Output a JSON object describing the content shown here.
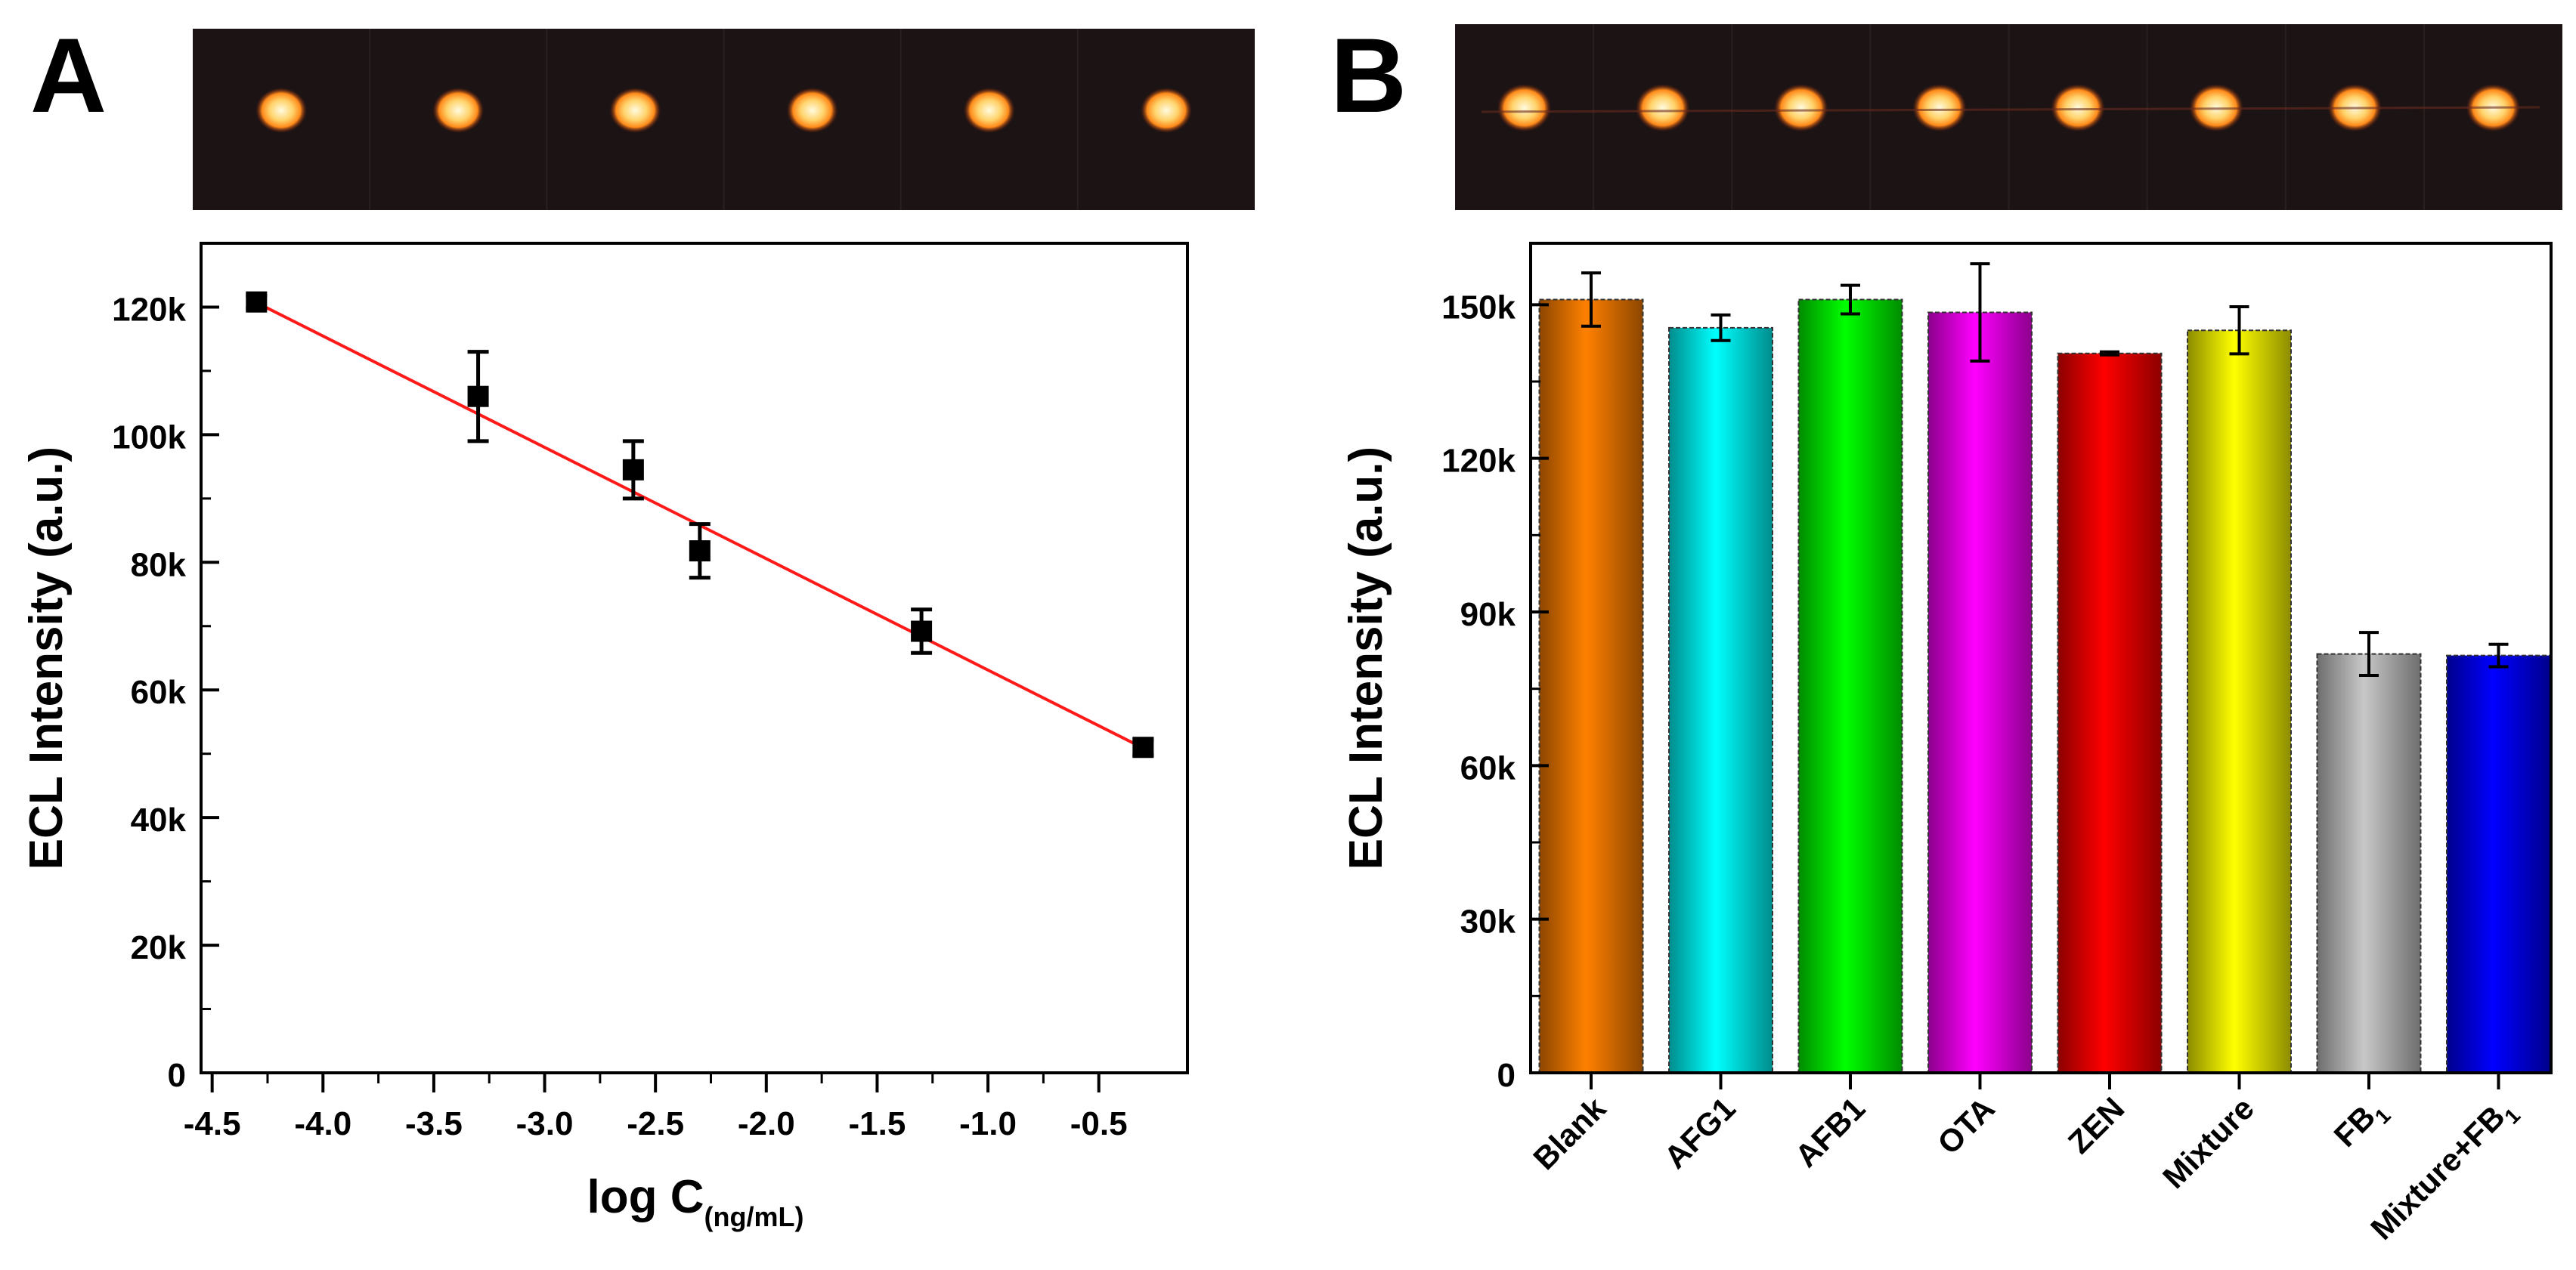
{
  "panels": {
    "a": {
      "letter": "A",
      "spot_count": 6
    },
    "b": {
      "letter": "B",
      "spot_count": 8
    }
  },
  "colors": {
    "fit_line": "#ff1a1a",
    "markers": "#000000",
    "strip_bg": "#1c1414",
    "spot_core": "#fffbe0",
    "spot_glow": "#ff8a1a"
  },
  "chart_data": [
    {
      "id": "A",
      "type": "scatter",
      "title": "",
      "xlabel": "log C",
      "xlabel_sub": "(ng/mL)",
      "ylabel": "ECL Intensity (a.u.)",
      "xlim": [
        -4.55,
        -0.1
      ],
      "ylim": [
        0,
        130000
      ],
      "xticks": [
        -4.5,
        -4.0,
        -3.5,
        -3.0,
        -2.5,
        -2.0,
        -1.5,
        -1.0,
        -0.5
      ],
      "xtick_labels": [
        "-4.5",
        "-4.0",
        "-3.5",
        "-3.0",
        "-2.5",
        "-2.0",
        "-1.5",
        "-1.0",
        "-0.5"
      ],
      "yticks": [
        0,
        20000,
        40000,
        60000,
        80000,
        100000,
        120000
      ],
      "ytick_labels": [
        "0",
        "20k",
        "40k",
        "60k",
        "80k",
        "100k",
        "120k"
      ],
      "points": [
        {
          "x": -4.3,
          "y": 120800,
          "err": 1000
        },
        {
          "x": -3.3,
          "y": 106000,
          "err": 7000
        },
        {
          "x": -2.6,
          "y": 94500,
          "err": 4500
        },
        {
          "x": -2.3,
          "y": 81800,
          "err": 4200
        },
        {
          "x": -1.3,
          "y": 69200,
          "err": 3400
        },
        {
          "x": -0.3,
          "y": 51000,
          "err": 1200
        }
      ],
      "fit": {
        "x": [
          -4.3,
          -0.3
        ],
        "y": [
          120700,
          50900
        ]
      },
      "grid": false
    },
    {
      "id": "B",
      "type": "bar",
      "title": "",
      "xlabel": "",
      "ylabel": "ECL Intensity (a.u.)",
      "ylim": [
        0,
        162000
      ],
      "yticks": [
        0,
        30000,
        60000,
        90000,
        120000,
        150000
      ],
      "ytick_labels": [
        "0",
        "30k",
        "60k",
        "90k",
        "120k",
        "150k"
      ],
      "categories": [
        {
          "label": "Blank",
          "sub": ""
        },
        {
          "label": "AFG1",
          "sub": ""
        },
        {
          "label": "AFB1",
          "sub": ""
        },
        {
          "label": "OTA",
          "sub": ""
        },
        {
          "label": "ZEN",
          "sub": ""
        },
        {
          "label": "Mixture",
          "sub": ""
        },
        {
          "label": "FB",
          "sub": "1"
        },
        {
          "label": "Mixture+FB",
          "sub": "1"
        }
      ],
      "values": [
        151000,
        145500,
        151000,
        148500,
        140500,
        145000,
        81800,
        81500
      ],
      "errors": [
        5200,
        2500,
        2800,
        9500,
        300,
        4600,
        4200,
        2200
      ],
      "bar_colors": [
        "#ff8000",
        "#00ffff",
        "#00ff00",
        "#ff00ff",
        "#ff0000",
        "#ffff00",
        "#c8c8c8",
        "#0000ff"
      ],
      "grid": false
    }
  ]
}
